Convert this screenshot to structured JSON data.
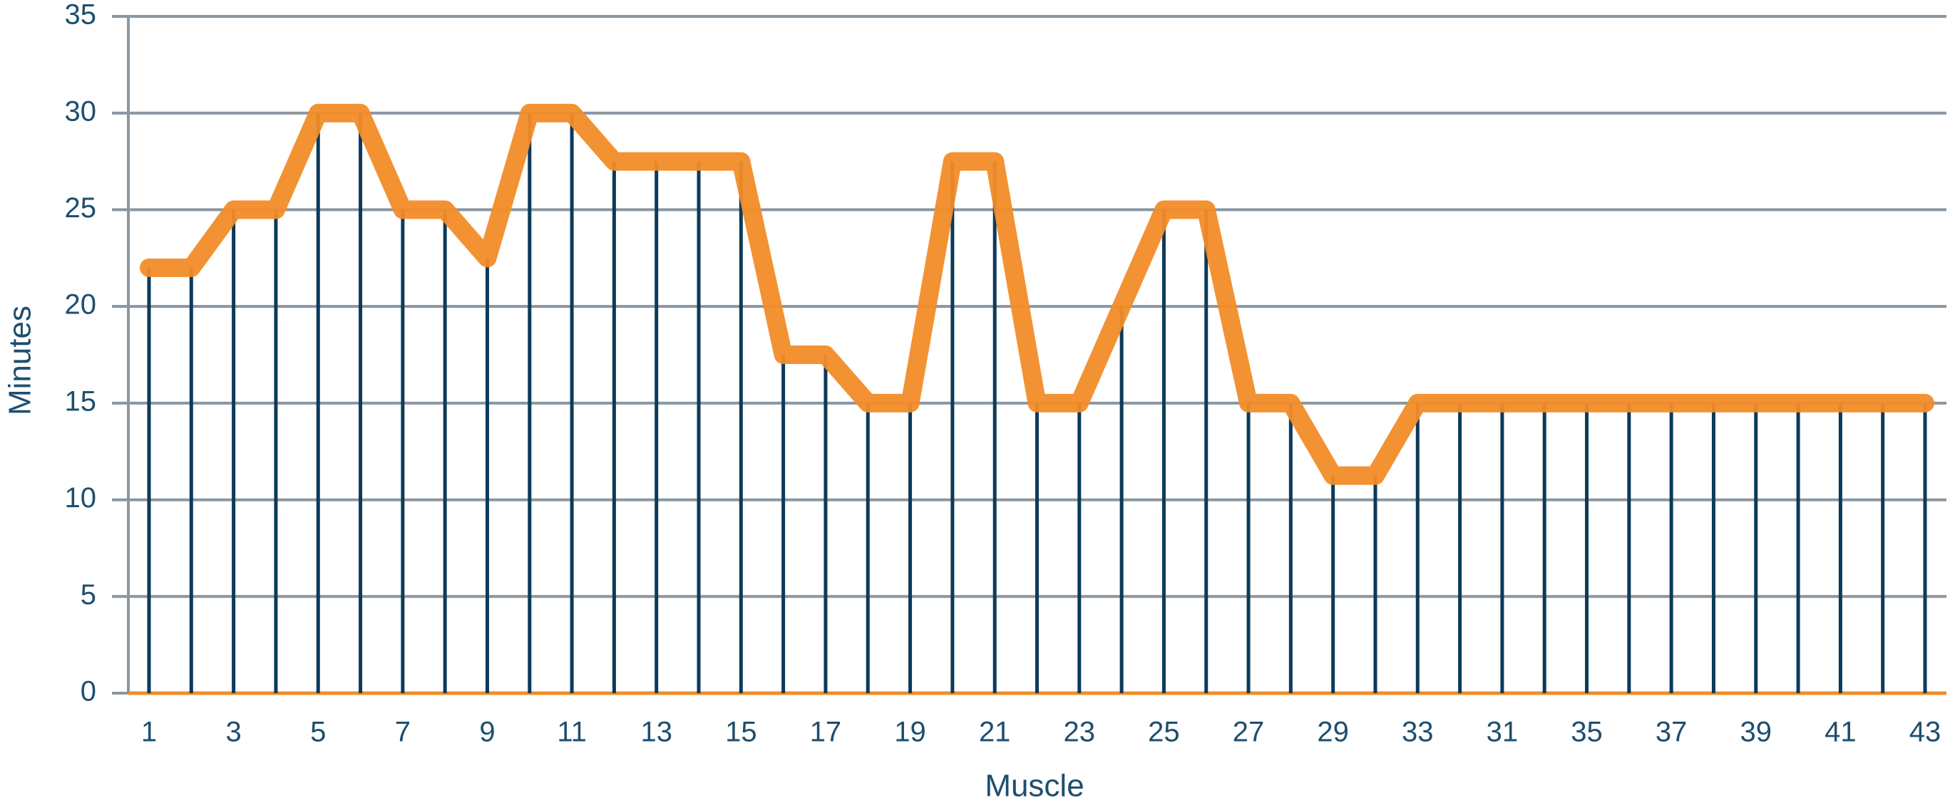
{
  "chart_data": {
    "type": "line",
    "x_label": "Muscle",
    "y_label": "Minutes",
    "categories": [
      1,
      null,
      3,
      null,
      5,
      null,
      7,
      null,
      9,
      null,
      11,
      null,
      13,
      null,
      15,
      null,
      17,
      null,
      19,
      null,
      21,
      null,
      23,
      null,
      25,
      null,
      27,
      null,
      29,
      null,
      33,
      null,
      31,
      null,
      35,
      null,
      37,
      null,
      39,
      null,
      41,
      null,
      43
    ],
    "values": [
      22,
      22,
      25,
      25,
      30,
      30,
      25,
      25,
      22.5,
      30,
      30,
      27.5,
      27.5,
      27.5,
      27.5,
      17.5,
      17.5,
      15,
      15,
      27.5,
      27.5,
      15,
      15,
      20,
      25,
      25,
      15,
      15,
      11.25,
      11.25,
      15,
      15,
      15,
      15,
      15,
      15,
      15,
      15,
      15,
      15,
      15,
      15,
      15
    ],
    "color": "#f28c28",
    "stem_color": "#0d3a5a",
    "grid": true,
    "ylim": [
      0,
      35
    ],
    "yticks": [
      0,
      5,
      10,
      15,
      20,
      25,
      30,
      35
    ]
  }
}
